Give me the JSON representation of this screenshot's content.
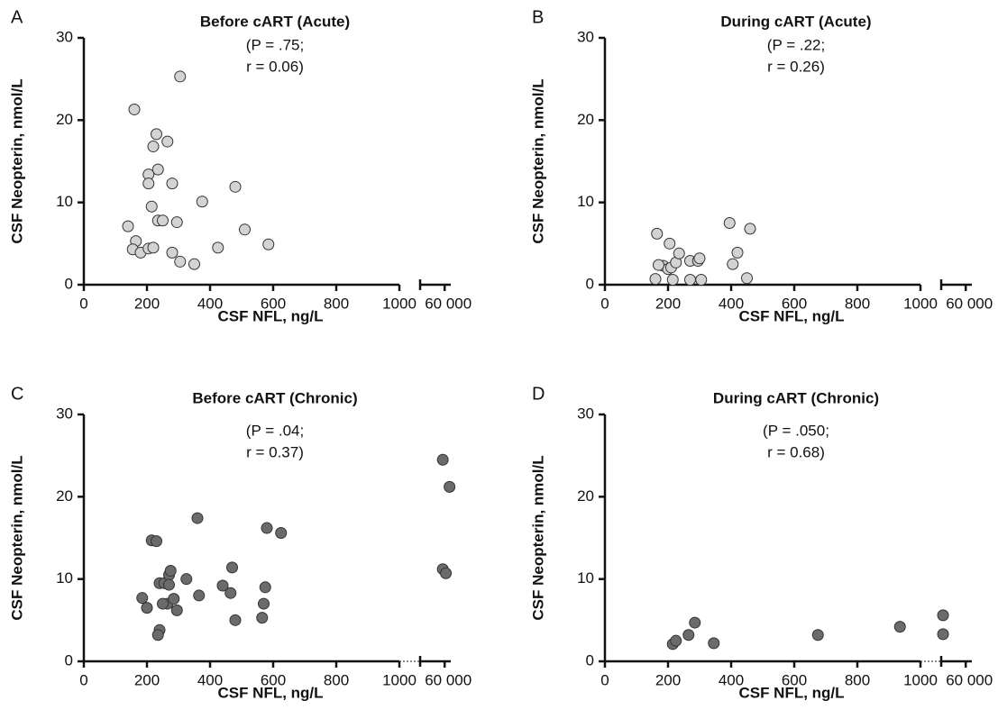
{
  "chart_data": [
    {
      "type": "scatter",
      "panel_label": "A",
      "title": "Before cART (Acute)",
      "annotation": [
        "(P = .75;",
        "r = 0.06)"
      ],
      "x_label": "CSF NFL, ng/L",
      "y_label": "CSF Neopterin, nmol/L",
      "color": "#d3d3d3",
      "xlim": [
        0,
        1000
      ],
      "xticks": [
        0,
        200,
        400,
        600,
        800,
        1000
      ],
      "x_break": {
        "xlim": [
          20000,
          70000
        ],
        "xticks": [
          {
            "value": 60000,
            "label": "60 000"
          }
        ]
      },
      "ylim": [
        0,
        30
      ],
      "yticks": [
        0,
        10,
        20,
        30
      ],
      "x": [
        160,
        305,
        230,
        265,
        220,
        235,
        205,
        205,
        280,
        480,
        375,
        215,
        235,
        250,
        295,
        140,
        510,
        585,
        165,
        155,
        180,
        205,
        220,
        425,
        280,
        305,
        350
      ],
      "values": [
        21.3,
        25.3,
        18.3,
        17.4,
        16.8,
        14,
        13.4,
        12.3,
        12.3,
        11.9,
        10.1,
        9.5,
        7.8,
        7.8,
        7.6,
        7.1,
        6.7,
        4.9,
        5.3,
        4.3,
        3.9,
        4.4,
        4.5,
        4.5,
        3.9,
        2.8,
        2.5
      ]
    },
    {
      "type": "scatter",
      "panel_label": "B",
      "title": "During cART (Acute)",
      "annotation": [
        "(P = .22;",
        "r = 0.26)"
      ],
      "x_label": "CSF NFL, ng/L",
      "y_label": "CSF Neopterin, nmol/L",
      "color": "#d3d3d3",
      "xlim": [
        0,
        1000
      ],
      "xticks": [
        0,
        200,
        400,
        600,
        800,
        1000
      ],
      "x_break": {
        "xlim": [
          20000,
          70000
        ],
        "xticks": [
          {
            "value": 60000,
            "label": "60 000"
          }
        ]
      },
      "ylim": [
        0,
        30
      ],
      "yticks": [
        0,
        10,
        20,
        30
      ],
      "x": [
        165,
        185,
        205,
        200,
        210,
        225,
        235,
        215,
        170,
        160,
        270,
        295,
        300,
        305,
        270,
        395,
        420,
        405,
        460,
        450
      ],
      "values": [
        6.2,
        2.3,
        5.0,
        1.9,
        2.1,
        2.7,
        3.8,
        0.6,
        2.4,
        0.7,
        2.9,
        2.9,
        3.2,
        0.6,
        0.6,
        7.5,
        3.9,
        2.5,
        6.8,
        0.8
      ]
    },
    {
      "type": "scatter",
      "panel_label": "C",
      "title": "Before cART (Chronic)",
      "annotation": [
        "(P = .04;",
        "r = 0.37)"
      ],
      "x_label": "CSF NFL, ng/L",
      "y_label": "CSF Neopterin, nmol/L",
      "color": "#6b6b6b",
      "xlim": [
        0,
        1000
      ],
      "xticks": [
        0,
        200,
        400,
        600,
        800,
        1000
      ],
      "x_break": {
        "xlim": [
          20000,
          70000
        ],
        "xticks": [
          {
            "value": 60000,
            "label": "60 000"
          }
        ]
      },
      "ylim": [
        0,
        30
      ],
      "yticks": [
        0,
        10,
        20,
        30
      ],
      "x": [
        215,
        230,
        360,
        580,
        625,
        185,
        200,
        240,
        255,
        270,
        275,
        270,
        265,
        250,
        285,
        295,
        325,
        365,
        440,
        465,
        470,
        480,
        565,
        570,
        575,
        240,
        235,
        57000,
        68000,
        57000,
        62000
      ],
      "values": [
        14.7,
        14.6,
        17.4,
        16.2,
        15.6,
        7.7,
        6.5,
        9.5,
        9.5,
        10.5,
        11,
        9.3,
        7,
        7,
        7.6,
        6.2,
        10,
        8,
        9.2,
        8.3,
        11.4,
        5,
        5.3,
        7,
        9,
        3.8,
        3.2,
        24.5,
        21.2,
        11.2,
        10.7
      ]
    },
    {
      "type": "scatter",
      "panel_label": "D",
      "title": "During cART (Chronic)",
      "annotation": [
        "(P = .050;",
        "r = 0.68)"
      ],
      "x_label": "CSF NFL, ng/L",
      "y_label": "CSF Neopterin, nmol/L",
      "color": "#6b6b6b",
      "xlim": [
        0,
        1000
      ],
      "xticks": [
        0,
        200,
        400,
        600,
        800,
        1000
      ],
      "x_break": {
        "xlim": [
          20000,
          70000
        ],
        "xticks": [
          {
            "value": 60000,
            "label": "60 000"
          }
        ]
      },
      "ylim": [
        0,
        30
      ],
      "yticks": [
        0,
        10,
        20,
        30
      ],
      "x": [
        215,
        225,
        265,
        285,
        345,
        675,
        935,
        23000,
        23000
      ],
      "values": [
        2.1,
        2.5,
        3.2,
        4.7,
        2.2,
        3.2,
        4.2,
        5.6,
        3.3
      ]
    }
  ]
}
